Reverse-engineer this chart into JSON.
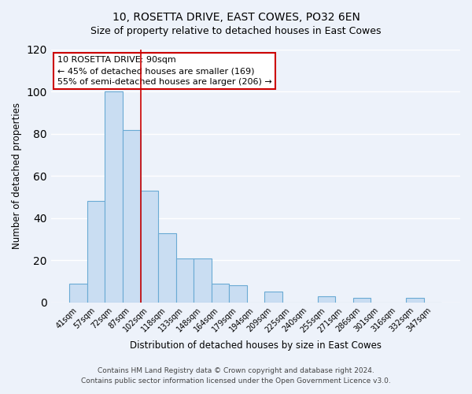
{
  "title": "10, ROSETTA DRIVE, EAST COWES, PO32 6EN",
  "subtitle": "Size of property relative to detached houses in East Cowes",
  "xlabel": "Distribution of detached houses by size in East Cowes",
  "ylabel": "Number of detached properties",
  "bar_labels": [
    "41sqm",
    "57sqm",
    "72sqm",
    "87sqm",
    "102sqm",
    "118sqm",
    "133sqm",
    "148sqm",
    "164sqm",
    "179sqm",
    "194sqm",
    "209sqm",
    "225sqm",
    "240sqm",
    "255sqm",
    "271sqm",
    "286sqm",
    "301sqm",
    "316sqm",
    "332sqm",
    "347sqm"
  ],
  "bar_values": [
    9,
    48,
    100,
    82,
    53,
    33,
    21,
    21,
    9,
    8,
    0,
    5,
    0,
    0,
    3,
    0,
    2,
    0,
    0,
    2,
    0
  ],
  "bar_color": "#c9ddf2",
  "bar_edge_color": "#6aaad4",
  "vline_index": 3,
  "vline_color": "#cc0000",
  "annotation_title": "10 ROSETTA DRIVE: 90sqm",
  "annotation_line1": "← 45% of detached houses are smaller (169)",
  "annotation_line2": "55% of semi-detached houses are larger (206) →",
  "annotation_border_color": "#cc0000",
  "ylim": [
    0,
    120
  ],
  "yticks": [
    0,
    20,
    40,
    60,
    80,
    100,
    120
  ],
  "footnote1": "Contains HM Land Registry data © Crown copyright and database right 2024.",
  "footnote2": "Contains public sector information licensed under the Open Government Licence v3.0.",
  "bg_color": "#edf2fa",
  "plot_bg_color": "#edf2fa",
  "grid_color": "#ffffff",
  "title_fontsize": 10,
  "subtitle_fontsize": 9,
  "axis_label_fontsize": 8.5,
  "tick_fontsize": 7,
  "annotation_fontsize": 8,
  "footnote_fontsize": 6.5
}
